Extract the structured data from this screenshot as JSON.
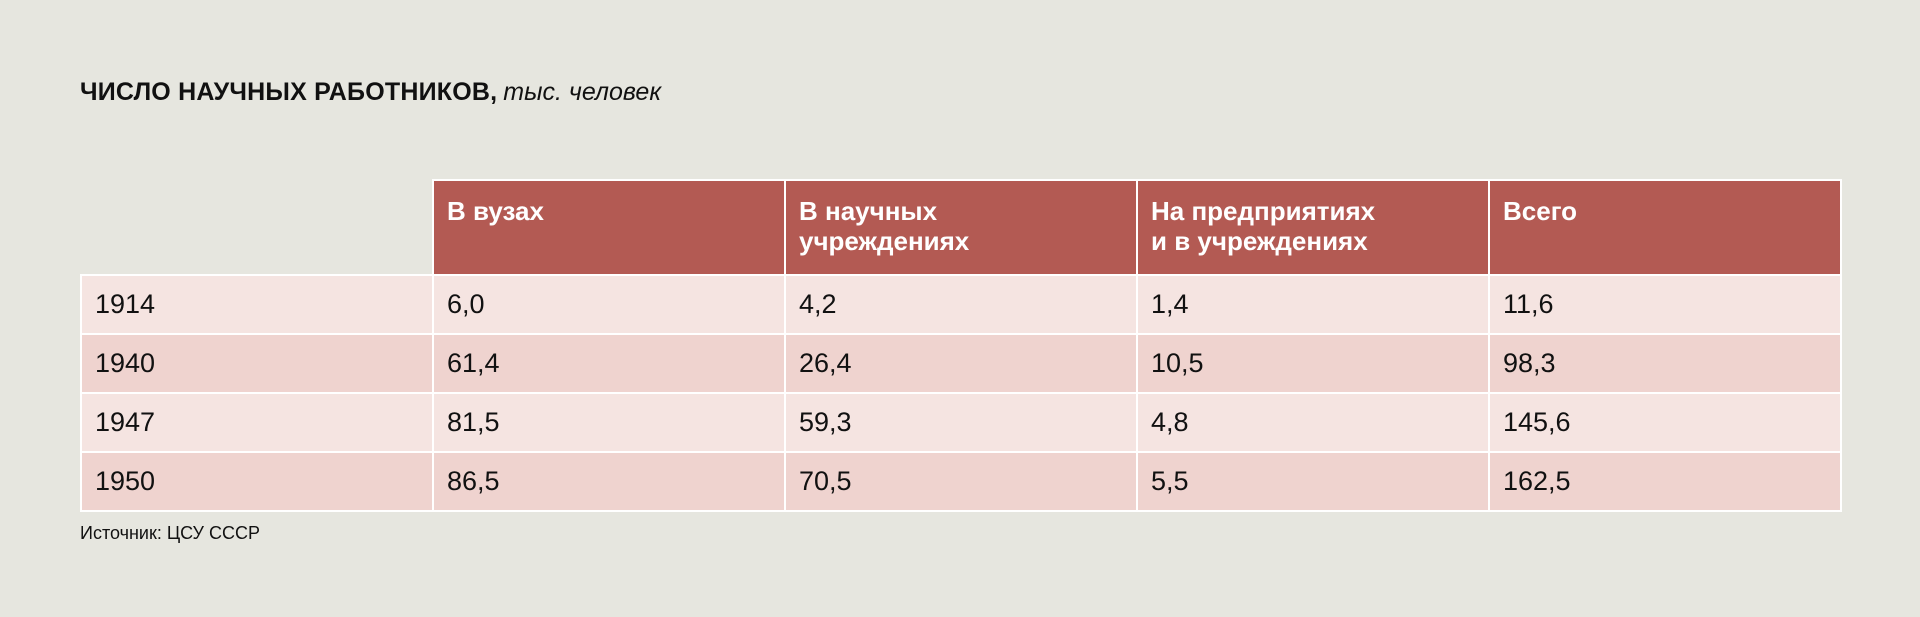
{
  "title": {
    "main": "ЧИСЛО НАУЧНЫХ РАБОТНИКОВ,",
    "unit": "тыс. человек"
  },
  "table": {
    "columns": [
      "В вузах",
      "В научных учреждениях",
      "На предприятиях и в учреждениях",
      "Всего"
    ],
    "header_lines": [
      [
        "В вузах"
      ],
      [
        "В научных",
        "учреждениях"
      ],
      [
        "На предприятиях",
        "и в учреждениях"
      ],
      [
        "Всего"
      ]
    ],
    "rows": [
      {
        "year": "1914",
        "cells": [
          "6,0",
          "4,2",
          "1,4",
          "11,6"
        ]
      },
      {
        "year": "1940",
        "cells": [
          "61,4",
          "26,4",
          "10,5",
          "98,3"
        ]
      },
      {
        "year": "1947",
        "cells": [
          "81,5",
          "59,3",
          "4,8",
          "145,6"
        ]
      },
      {
        "year": "1950",
        "cells": [
          "86,5",
          "70,5",
          "5,5",
          "162,5"
        ]
      }
    ]
  },
  "source": "Источник: ЦСУ СССР",
  "colors": {
    "background": "#e6e6df",
    "header": "#b35a53",
    "row_light": "#f5e4e1",
    "row_dark": "#efd3cf"
  },
  "chart_data": {
    "type": "table",
    "title": "ЧИСЛО НАУЧНЫХ РАБОТНИКОВ, тыс. человек",
    "categories": [
      "1914",
      "1940",
      "1947",
      "1950"
    ],
    "series": [
      {
        "name": "В вузах",
        "values": [
          6.0,
          61.4,
          81.5,
          86.5
        ]
      },
      {
        "name": "В научных учреждениях",
        "values": [
          4.2,
          26.4,
          59.3,
          70.5
        ]
      },
      {
        "name": "На предприятиях и в учреждениях",
        "values": [
          1.4,
          10.5,
          4.8,
          5.5
        ]
      },
      {
        "name": "Всего",
        "values": [
          11.6,
          98.3,
          145.6,
          162.5
        ]
      }
    ]
  }
}
